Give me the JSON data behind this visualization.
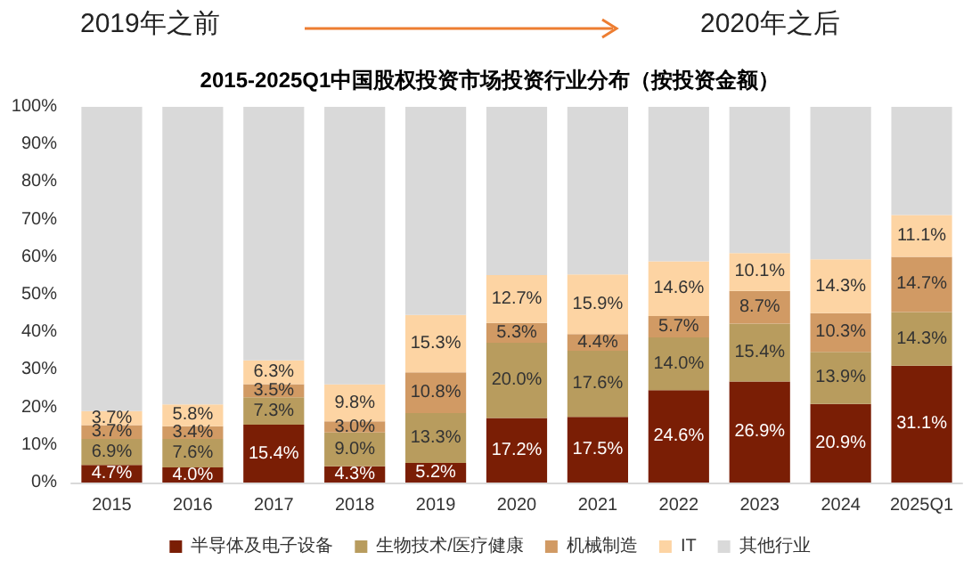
{
  "chart_data": {
    "type": "bar",
    "stacked": true,
    "title": "2015-2025Q1中国股权投资市场投资行业分布（按投资金额）",
    "annotations": [
      "2019年之前",
      "2020年之后"
    ],
    "categories": [
      "2015",
      "2016",
      "2017",
      "2018",
      "2019",
      "2020",
      "2021",
      "2022",
      "2023",
      "2024",
      "2025Q1"
    ],
    "series": [
      {
        "name": "半导体及电子设备",
        "color": "#7a1e05",
        "values": [
          4.7,
          4.0,
          15.4,
          4.3,
          5.2,
          17.2,
          17.5,
          24.6,
          26.9,
          20.9,
          31.1
        ],
        "value_labels": [
          "4.7%",
          "4.0%",
          "15.4%",
          "4.3%",
          "5.2%",
          "17.2%",
          "17.5%",
          "24.6%",
          "26.9%",
          "20.9%",
          "31.1%"
        ]
      },
      {
        "name": "生物技术/医疗健康",
        "color": "#b89c5e",
        "values": [
          6.9,
          7.6,
          7.3,
          9.0,
          13.3,
          20.0,
          17.6,
          14.0,
          15.4,
          13.9,
          14.3
        ],
        "value_labels": [
          "6.9%",
          "7.6%",
          "7.3%",
          "9.0%",
          "13.3%",
          "20.0%",
          "17.6%",
          "14.0%",
          "15.4%",
          "13.9%",
          "14.3%"
        ]
      },
      {
        "name": "机械制造",
        "color": "#d19a64",
        "values": [
          3.7,
          3.4,
          3.5,
          3.0,
          10.8,
          5.3,
          4.4,
          5.7,
          8.7,
          10.3,
          14.7
        ],
        "value_labels": [
          "3.7%",
          "3.4%",
          "3.5%",
          "3.0%",
          "10.8%",
          "5.3%",
          "4.4%",
          "5.7%",
          "8.7%",
          "10.3%",
          "14.7%"
        ]
      },
      {
        "name": "IT",
        "color": "#fdd4a3",
        "values": [
          3.7,
          5.8,
          6.3,
          9.8,
          15.3,
          12.7,
          15.9,
          14.6,
          10.1,
          14.3,
          11.1
        ],
        "value_labels": [
          "3.7%",
          "5.8%",
          "6.3%",
          "9.8%",
          "15.3%",
          "12.7%",
          "15.9%",
          "14.6%",
          "10.1%",
          "14.3%",
          "11.1%"
        ]
      },
      {
        "name": "其他行业",
        "color": "#d9d9d9",
        "values": [
          81.0,
          79.2,
          67.5,
          73.9,
          55.4,
          44.8,
          44.6,
          41.1,
          38.9,
          40.6,
          28.8
        ]
      }
    ],
    "ylim": [
      0,
      100
    ],
    "yticks": [
      {
        "value": 0,
        "label": "0%"
      },
      {
        "value": 10,
        "label": "10%"
      },
      {
        "value": 20,
        "label": "20%"
      },
      {
        "value": 30,
        "label": "30%"
      },
      {
        "value": 40,
        "label": "40%"
      },
      {
        "value": 50,
        "label": "50%"
      },
      {
        "value": 60,
        "label": "60%"
      },
      {
        "value": 70,
        "label": "70%"
      },
      {
        "value": 80,
        "label": "80%"
      },
      {
        "value": 90,
        "label": "90%"
      },
      {
        "value": 100,
        "label": "100%"
      }
    ],
    "grid": false,
    "legend": "bottom"
  }
}
